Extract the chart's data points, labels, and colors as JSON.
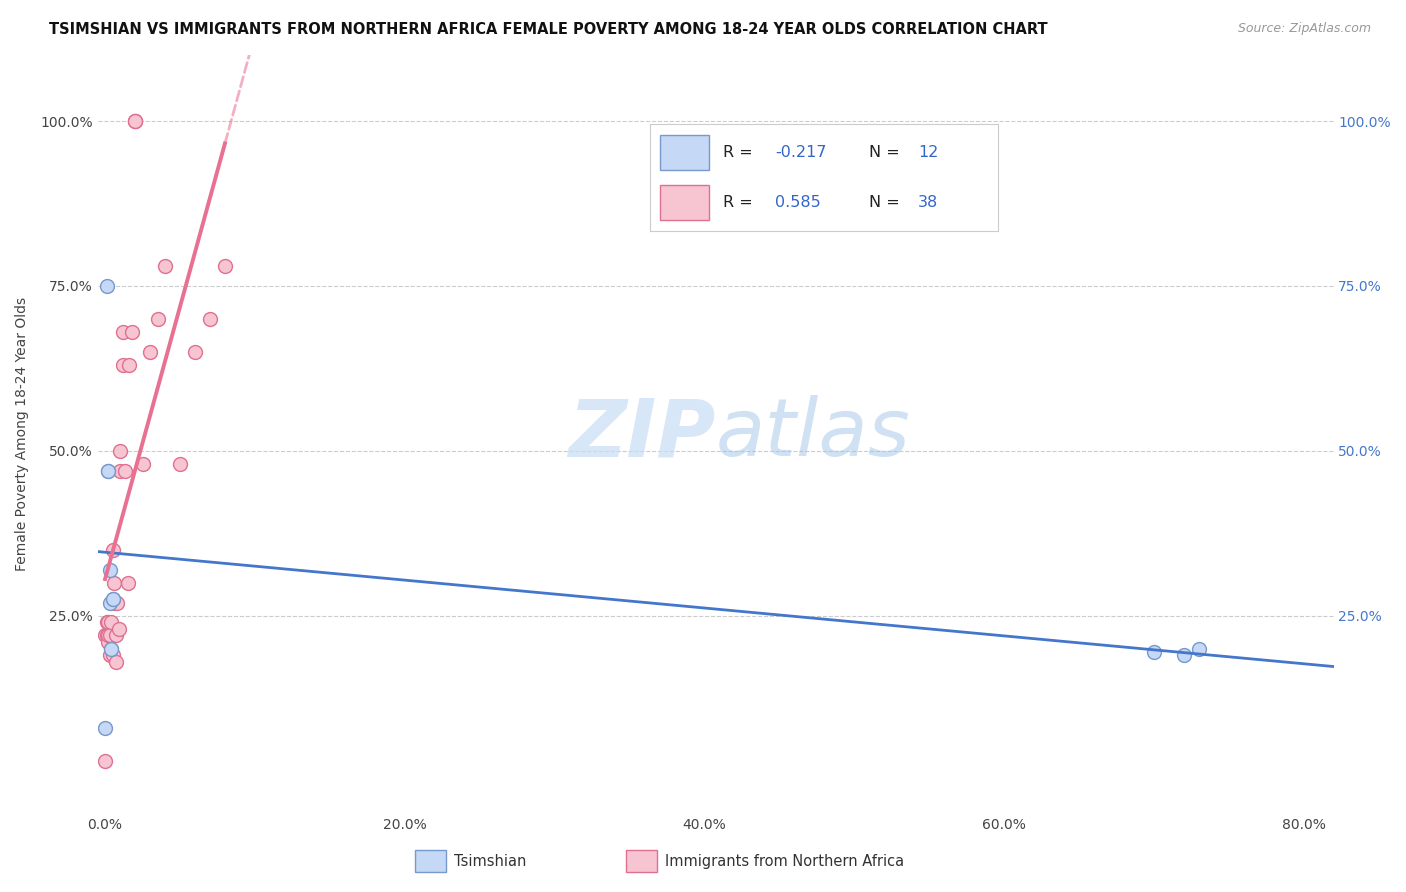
{
  "title": "TSIMSHIAN VS IMMIGRANTS FROM NORTHERN AFRICA FEMALE POVERTY AMONG 18-24 YEAR OLDS CORRELATION CHART",
  "source": "Source: ZipAtlas.com",
  "ylabel": "Female Poverty Among 18-24 Year Olds",
  "watermark_zip": "ZIP",
  "watermark_atlas": "atlas",
  "xlim": [
    -0.005,
    0.82
  ],
  "ylim": [
    -0.05,
    1.1
  ],
  "xtick_labels": [
    "0.0%",
    "20.0%",
    "40.0%",
    "60.0%",
    "80.0%"
  ],
  "xtick_vals": [
    0.0,
    0.2,
    0.4,
    0.6,
    0.8
  ],
  "ytick_labels": [
    "25.0%",
    "50.0%",
    "75.0%",
    "100.0%"
  ],
  "ytick_vals": [
    0.25,
    0.5,
    0.75,
    1.0
  ],
  "grid_color": "#cccccc",
  "background_color": "#ffffff",
  "tsimshian_color": "#c5d8f5",
  "tsimshian_edge_color": "#7799cc",
  "immigrants_color": "#f7c5d2",
  "immigrants_edge_color": "#e07090",
  "tsimshian_R": -0.217,
  "tsimshian_N": 12,
  "immigrants_R": 0.585,
  "immigrants_N": 38,
  "tsimshian_line_color": "#4477cc",
  "immigrants_line_color": "#e87090",
  "legend_R_color": "#3366cc",
  "tsimshian_x": [
    0.0,
    0.001,
    0.002,
    0.002,
    0.003,
    0.003,
    0.004,
    0.005,
    0.005,
    0.7,
    0.72,
    0.73
  ],
  "tsimshian_y": [
    0.08,
    0.75,
    0.47,
    0.47,
    0.32,
    0.27,
    0.2,
    0.275,
    0.275,
    0.195,
    0.19,
    0.2
  ],
  "immigrants_x": [
    0.0,
    0.0,
    0.001,
    0.001,
    0.002,
    0.002,
    0.002,
    0.003,
    0.003,
    0.004,
    0.004,
    0.005,
    0.005,
    0.006,
    0.006,
    0.007,
    0.007,
    0.008,
    0.009,
    0.01,
    0.01,
    0.012,
    0.012,
    0.013,
    0.015,
    0.016,
    0.018,
    0.02,
    0.02,
    0.02,
    0.025,
    0.03,
    0.035,
    0.04,
    0.05,
    0.06,
    0.07,
    0.08
  ],
  "immigrants_y": [
    0.03,
    0.22,
    0.22,
    0.24,
    0.21,
    0.22,
    0.24,
    0.19,
    0.22,
    0.2,
    0.24,
    0.19,
    0.35,
    0.27,
    0.3,
    0.18,
    0.22,
    0.27,
    0.23,
    0.47,
    0.5,
    0.63,
    0.68,
    0.47,
    0.3,
    0.63,
    0.68,
    1.0,
    1.0,
    1.0,
    0.48,
    0.65,
    0.7,
    0.78,
    0.48,
    0.65,
    0.7,
    0.78
  ],
  "marker_size": 100,
  "line_width": 2.0,
  "title_fontsize": 10.5,
  "source_fontsize": 9,
  "axis_fontsize": 10,
  "ylabel_fontsize": 10
}
